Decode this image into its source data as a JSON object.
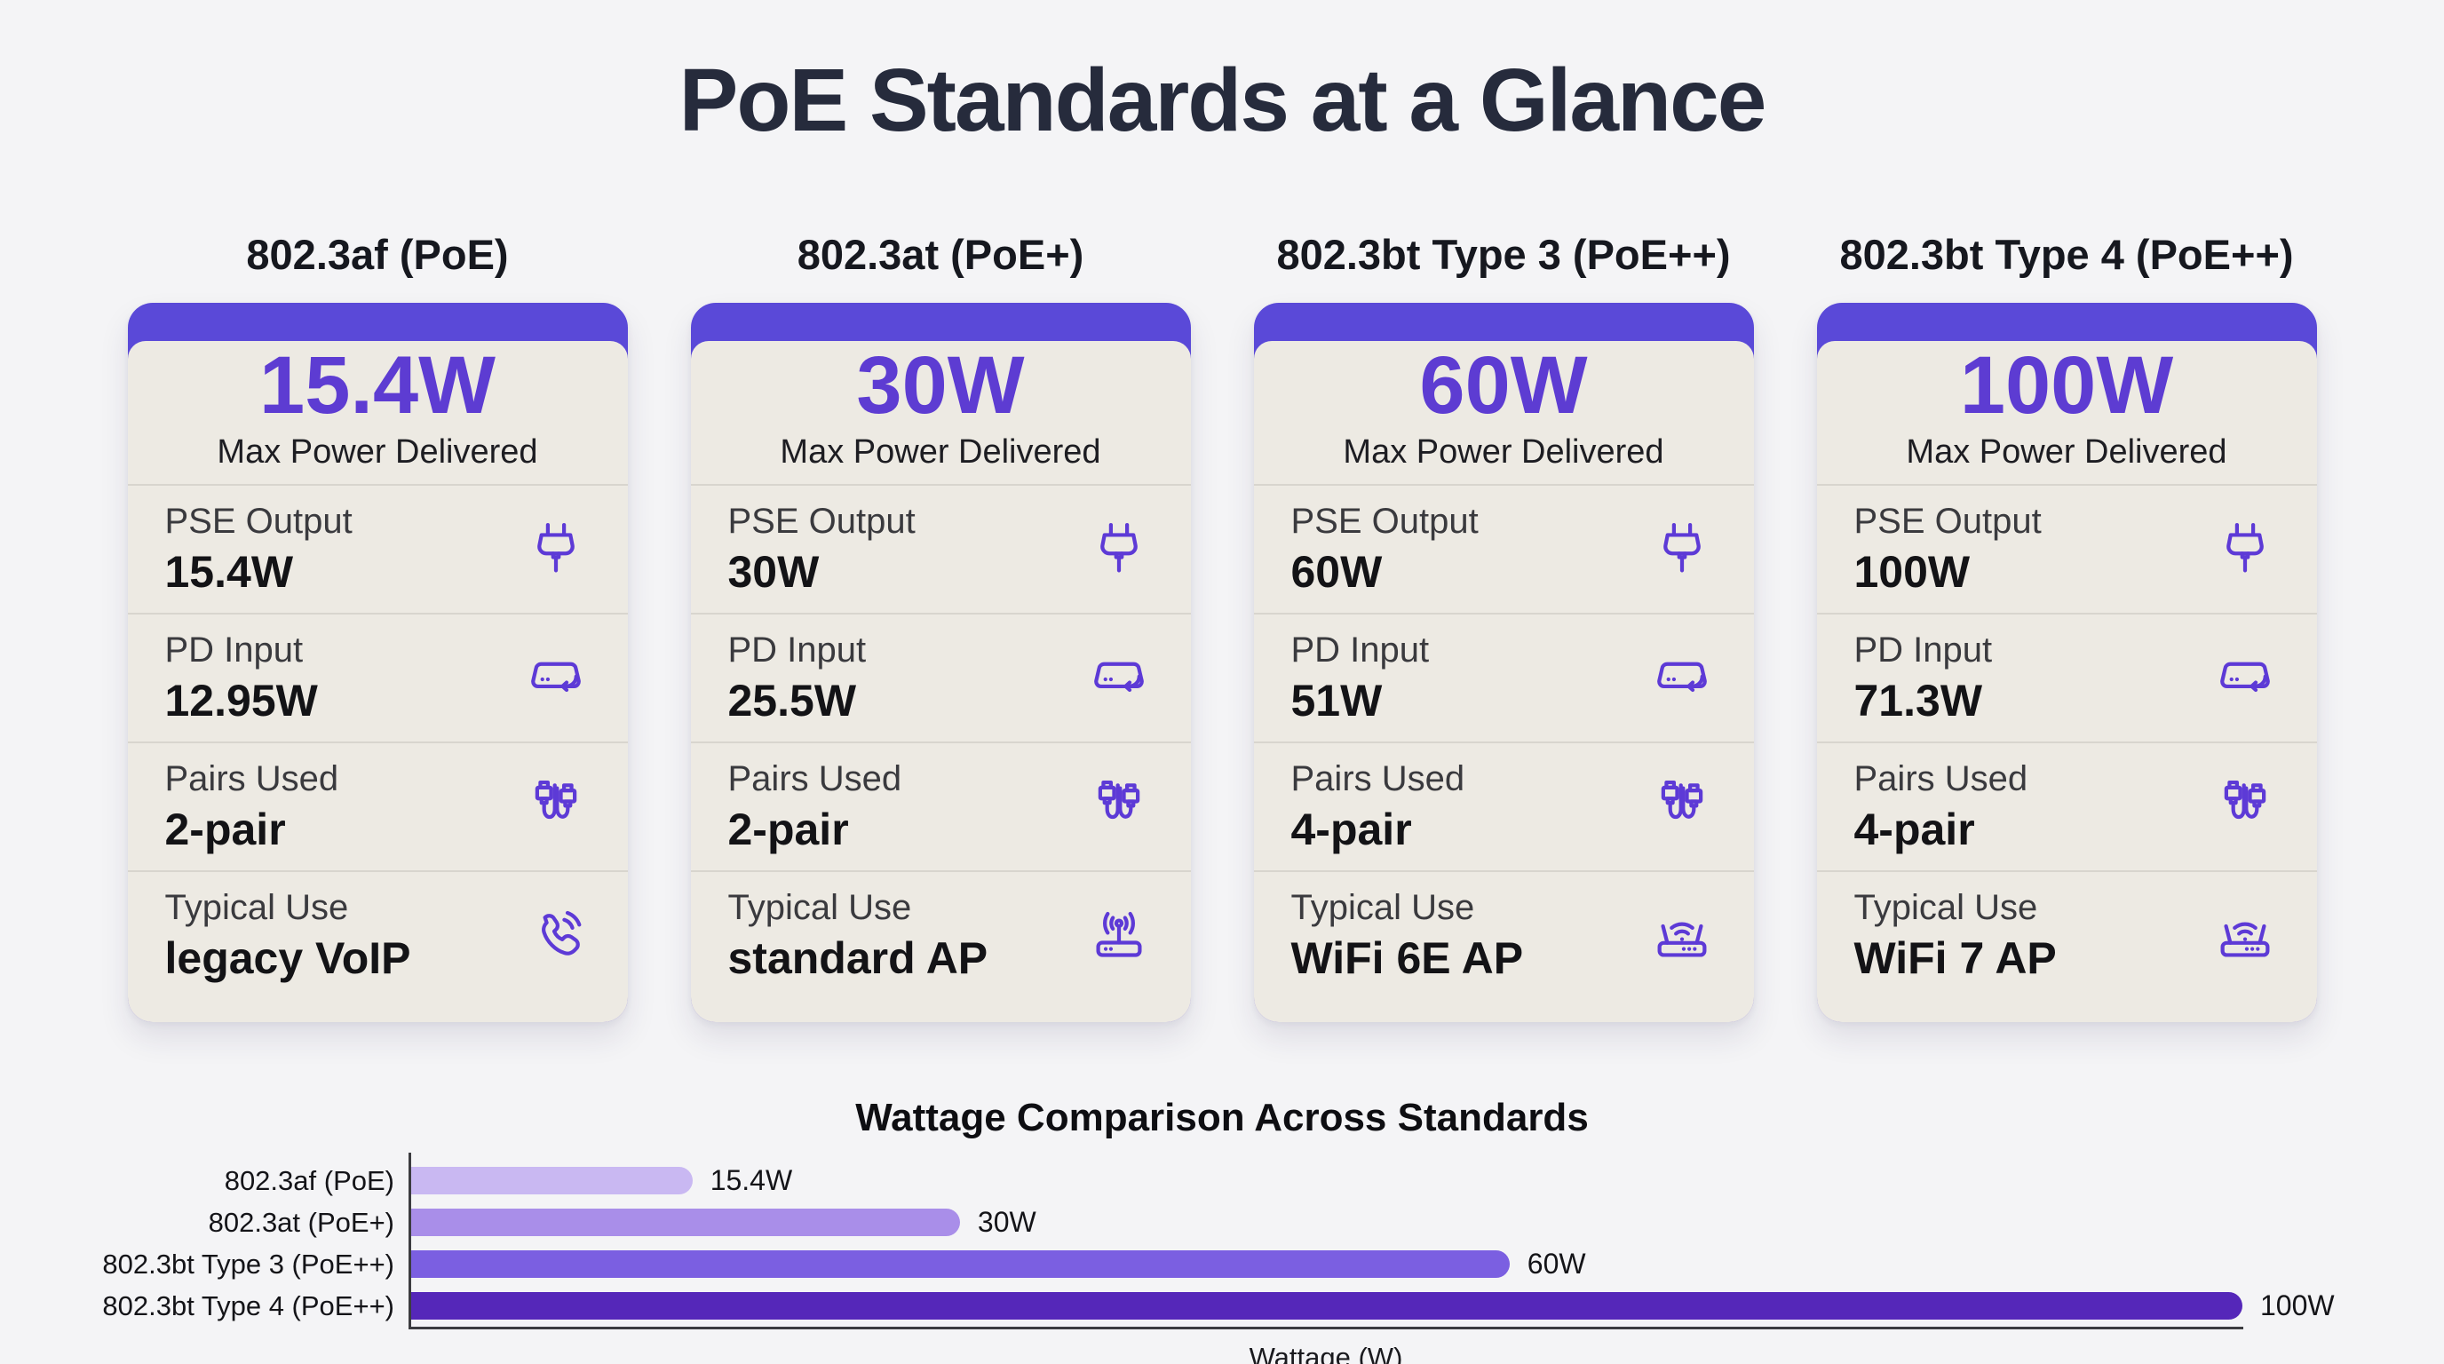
{
  "title": "PoE Standards at a Glance",
  "colors": {
    "accent": "#5a49d8",
    "big_number": "#5d3cd2",
    "icon_stroke": "#5d3ad6",
    "card_background": "#edeae3",
    "page_background": "#f4f4f6"
  },
  "cards": [
    {
      "header": "802.3af (PoE)",
      "max_power": "15.4W",
      "max_power_label": "Max Power Delivered",
      "rows": [
        {
          "label": "PSE Output",
          "value": "15.4W",
          "icon": "plug-icon"
        },
        {
          "label": "PD Input",
          "value": "12.95W",
          "icon": "powered-device-icon"
        },
        {
          "label": "Pairs Used",
          "value": "2-pair",
          "icon": "cable-pairs-icon"
        },
        {
          "label": "Typical Use",
          "value": "legacy VoIP",
          "icon": "phone-icon"
        }
      ]
    },
    {
      "header": "802.3at (PoE+)",
      "max_power": "30W",
      "max_power_label": "Max Power Delivered",
      "rows": [
        {
          "label": "PSE Output",
          "value": "30W",
          "icon": "plug-icon"
        },
        {
          "label": "PD Input",
          "value": "25.5W",
          "icon": "powered-device-icon"
        },
        {
          "label": "Pairs Used",
          "value": "2-pair",
          "icon": "cable-pairs-icon"
        },
        {
          "label": "Typical Use",
          "value": "standard AP",
          "icon": "access-point-icon"
        }
      ]
    },
    {
      "header": "802.3bt Type 3 (PoE++)",
      "max_power": "60W",
      "max_power_label": "Max Power Delivered",
      "rows": [
        {
          "label": "PSE Output",
          "value": "60W",
          "icon": "plug-icon"
        },
        {
          "label": "PD Input",
          "value": "51W",
          "icon": "powered-device-icon"
        },
        {
          "label": "Pairs Used",
          "value": "4-pair",
          "icon": "cable-pairs-icon"
        },
        {
          "label": "Typical Use",
          "value": "WiFi 6E AP",
          "icon": "wifi-router-icon"
        }
      ]
    },
    {
      "header": "802.3bt Type 4 (PoE++)",
      "max_power": "100W",
      "max_power_label": "Max Power Delivered",
      "rows": [
        {
          "label": "PSE Output",
          "value": "100W",
          "icon": "plug-icon"
        },
        {
          "label": "PD Input",
          "value": "71.3W",
          "icon": "powered-device-icon"
        },
        {
          "label": "Pairs Used",
          "value": "4-pair",
          "icon": "cable-pairs-icon"
        },
        {
          "label": "Typical Use",
          "value": "WiFi 7 AP",
          "icon": "wifi-router-icon"
        }
      ]
    }
  ],
  "chart_data": {
    "type": "bar",
    "orientation": "horizontal",
    "title": "Wattage Comparison Across Standards",
    "categories": [
      "802.3af (PoE)",
      "802.3at (PoE+)",
      "802.3bt Type 3 (PoE++)",
      "802.3bt Type 4 (PoE++)"
    ],
    "values": [
      15.4,
      30,
      60,
      100
    ],
    "value_labels": [
      "15.4W",
      "30W",
      "60W",
      "100W"
    ],
    "xlabel": "Wattage (W)",
    "xlim": [
      0,
      100
    ],
    "bar_colors": [
      "#c9b8f2",
      "#a98ee9",
      "#7b5fe1",
      "#5527b9"
    ],
    "grid": false,
    "legend": "none"
  }
}
